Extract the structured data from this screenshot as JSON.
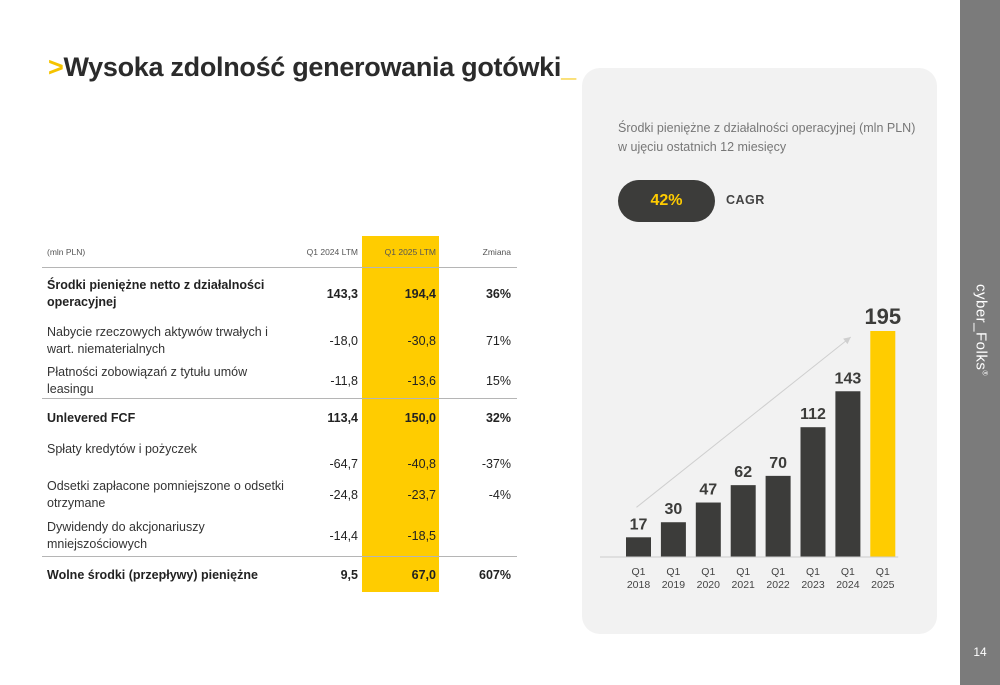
{
  "header": {
    "title_arrow": ">",
    "title": "Wysoka zdolność generowania gotówki",
    "title_cursor": "_"
  },
  "sidebar": {
    "brand": "cyber_Folks",
    "brand_mark": "®",
    "page_number": "14"
  },
  "table": {
    "headers": {
      "label": "(mln PLN)",
      "q1_2024": "Q1 2024 LTM",
      "q1_2025": "Q1 2025 LTM",
      "change": "Zmiana"
    },
    "rows": [
      {
        "label": "Środki pieniężne netto z działalności operacyjnej",
        "q1_2024": "143,3",
        "q1_2025": "194,4",
        "change": "36%"
      },
      {
        "label": "Nabycie rzeczowych aktywów trwałych i wart. niematerialnych",
        "q1_2024": "-18,0",
        "q1_2025": "-30,8",
        "change": "71%"
      },
      {
        "label": "Płatności zobowiązań z tytułu umów leasingu",
        "q1_2024": "-11,8",
        "q1_2025": "-13,6",
        "change": "15%"
      },
      {
        "label": "Unlevered FCF",
        "q1_2024": "113,4",
        "q1_2025": "150,0",
        "change": "32%"
      },
      {
        "label": "Spłaty kredytów i pożyczek",
        "q1_2024": "-64,7",
        "q1_2025": "-40,8",
        "change": "-37%"
      },
      {
        "label": "Odsetki zapłacone pomniejszone o odsetki otrzymane",
        "q1_2024": "-24,8",
        "q1_2025": "-23,7",
        "change": "-4%"
      },
      {
        "label": "Dywidendy do akcjonariuszy mniejszościowych",
        "q1_2024": "-14,4",
        "q1_2025": "-18,5",
        "change": ""
      },
      {
        "label": "Wolne środki (przepływy) pieniężne",
        "q1_2024": "9,5",
        "q1_2025": "67,0",
        "change": "607%"
      }
    ]
  },
  "chart_panel": {
    "subtitle_line1": "Środki pieniężne z działalności operacyjnej (mln PLN)",
    "subtitle_line2": "w ujęciu ostatnich 12 miesięcy",
    "cagr_value": "42%",
    "cagr_label": "CAGR"
  },
  "chart_data": {
    "type": "bar",
    "title": "Środki pieniężne z działalności operacyjnej (mln PLN) w ujęciu ostatnich 12 miesięcy",
    "categories": [
      [
        "Q1",
        "2018"
      ],
      [
        "Q1",
        "2019"
      ],
      [
        "Q1",
        "2020"
      ],
      [
        "Q1",
        "2021"
      ],
      [
        "Q1",
        "2022"
      ],
      [
        "Q1",
        "2023"
      ],
      [
        "Q1",
        "2024"
      ],
      [
        "Q1",
        "2025"
      ]
    ],
    "values": [
      17,
      30,
      47,
      62,
      70,
      112,
      143,
      195
    ],
    "ylim": [
      0,
      195
    ],
    "grid": false,
    "legend": "none",
    "colors": {
      "default": "#3c3c3a",
      "highlight": "#ffcc00",
      "trend": "#cfcfcf"
    },
    "highlight_index": 7
  }
}
